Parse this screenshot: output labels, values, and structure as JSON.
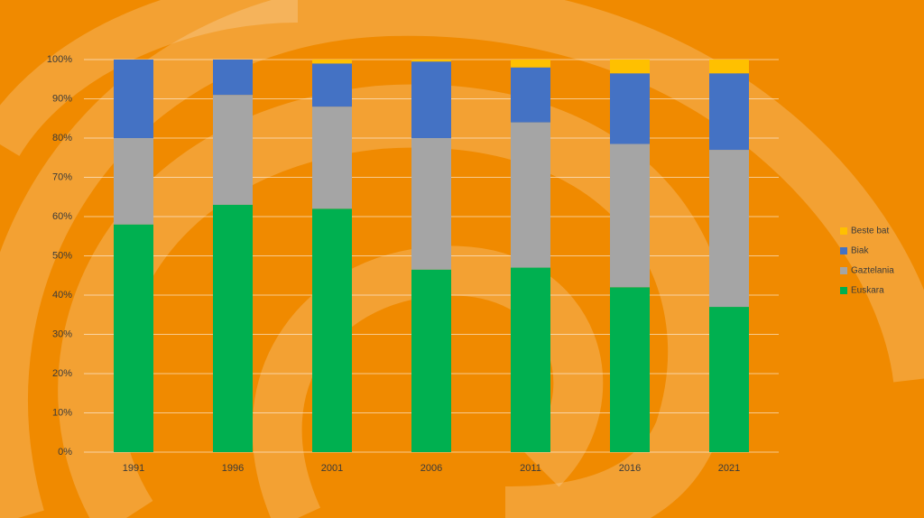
{
  "chart_data": {
    "type": "stacked_bar",
    "categories": [
      "1991",
      "1996",
      "2001",
      "2006",
      "2011",
      "2016",
      "2021"
    ],
    "series": [
      {
        "name": "Euskara",
        "color": "#00b050",
        "values": [
          58,
          63,
          62,
          46.5,
          47,
          42,
          37
        ]
      },
      {
        "name": "Gaztelania",
        "color": "#a5a5a5",
        "values": [
          22,
          28,
          26,
          33.5,
          37,
          36.5,
          40
        ]
      },
      {
        "name": "Biak",
        "color": "#4472c4",
        "values": [
          20,
          9,
          11,
          19.5,
          14,
          18,
          19.5
        ]
      },
      {
        "name": "Beste bat",
        "color": "#ffc000",
        "values": [
          0,
          0,
          1,
          0.5,
          2,
          3.5,
          3.5
        ]
      }
    ],
    "ylim": [
      0,
      100
    ],
    "yticks": [
      {
        "value": 0,
        "label": "0%"
      },
      {
        "value": 10,
        "label": "10%"
      },
      {
        "value": 20,
        "label": "20%"
      },
      {
        "value": 30,
        "label": "30%"
      },
      {
        "value": 40,
        "label": "40%"
      },
      {
        "value": 50,
        "label": "50%"
      },
      {
        "value": 60,
        "label": "60%"
      },
      {
        "value": 70,
        "label": "70%"
      },
      {
        "value": 80,
        "label": "80%"
      },
      {
        "value": 90,
        "label": "90%"
      },
      {
        "value": 100,
        "label": "100%"
      }
    ],
    "grid": true,
    "legend": "right"
  }
}
